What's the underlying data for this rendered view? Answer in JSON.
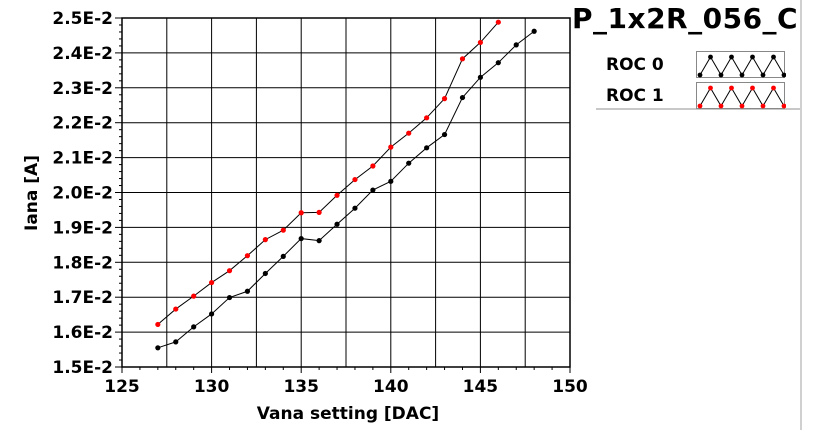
{
  "chart_data": {
    "type": "line",
    "title": "P_1x2R_056_C",
    "xlabel": "Vana setting [DAC]",
    "ylabel": "Iana [A]",
    "xlim": [
      125,
      150
    ],
    "ylim": [
      0.015,
      0.025
    ],
    "xticks": [
      125,
      130,
      135,
      140,
      145,
      150
    ],
    "xtick_labels": [
      "125",
      "130",
      "135",
      "140",
      "145",
      "150"
    ],
    "yticks": [
      0.015,
      0.016,
      0.017,
      0.018,
      0.019,
      0.02,
      0.021,
      0.022,
      0.023,
      0.024,
      0.025
    ],
    "ytick_labels": [
      "1.5E-2",
      "1.6E-2",
      "1.7E-2",
      "1.8E-2",
      "1.9E-2",
      "2.0E-2",
      "2.1E-2",
      "2.2E-2",
      "2.3E-2",
      "2.4E-2",
      "2.5E-2"
    ],
    "grid": true,
    "legend_position": "right",
    "series": [
      {
        "name": "ROC 0",
        "color": "#000000",
        "x": [
          127,
          128,
          129,
          130,
          131,
          132,
          133,
          134,
          135,
          136,
          137,
          138,
          139,
          140,
          141,
          142,
          143,
          144,
          145,
          146,
          147,
          148
        ],
        "y": [
          0.01555,
          0.01572,
          0.01615,
          0.01652,
          0.01699,
          0.01717,
          0.01768,
          0.01817,
          0.01868,
          0.01862,
          0.01909,
          0.01955,
          0.02007,
          0.02032,
          0.02084,
          0.02128,
          0.02166,
          0.02272,
          0.0233,
          0.02372,
          0.02423,
          0.02462
        ]
      },
      {
        "name": "ROC 1",
        "color": "#ff0000",
        "x": [
          127,
          128,
          129,
          130,
          131,
          132,
          133,
          134,
          135,
          136,
          137,
          138,
          139,
          140,
          141,
          142,
          143,
          144,
          145,
          146
        ],
        "y": [
          0.01622,
          0.01666,
          0.01703,
          0.01742,
          0.01776,
          0.01819,
          0.01865,
          0.01892,
          0.01942,
          0.01943,
          0.01992,
          0.02037,
          0.02076,
          0.0213,
          0.0217,
          0.02214,
          0.02269,
          0.02383,
          0.0243,
          0.02488
        ]
      }
    ]
  }
}
